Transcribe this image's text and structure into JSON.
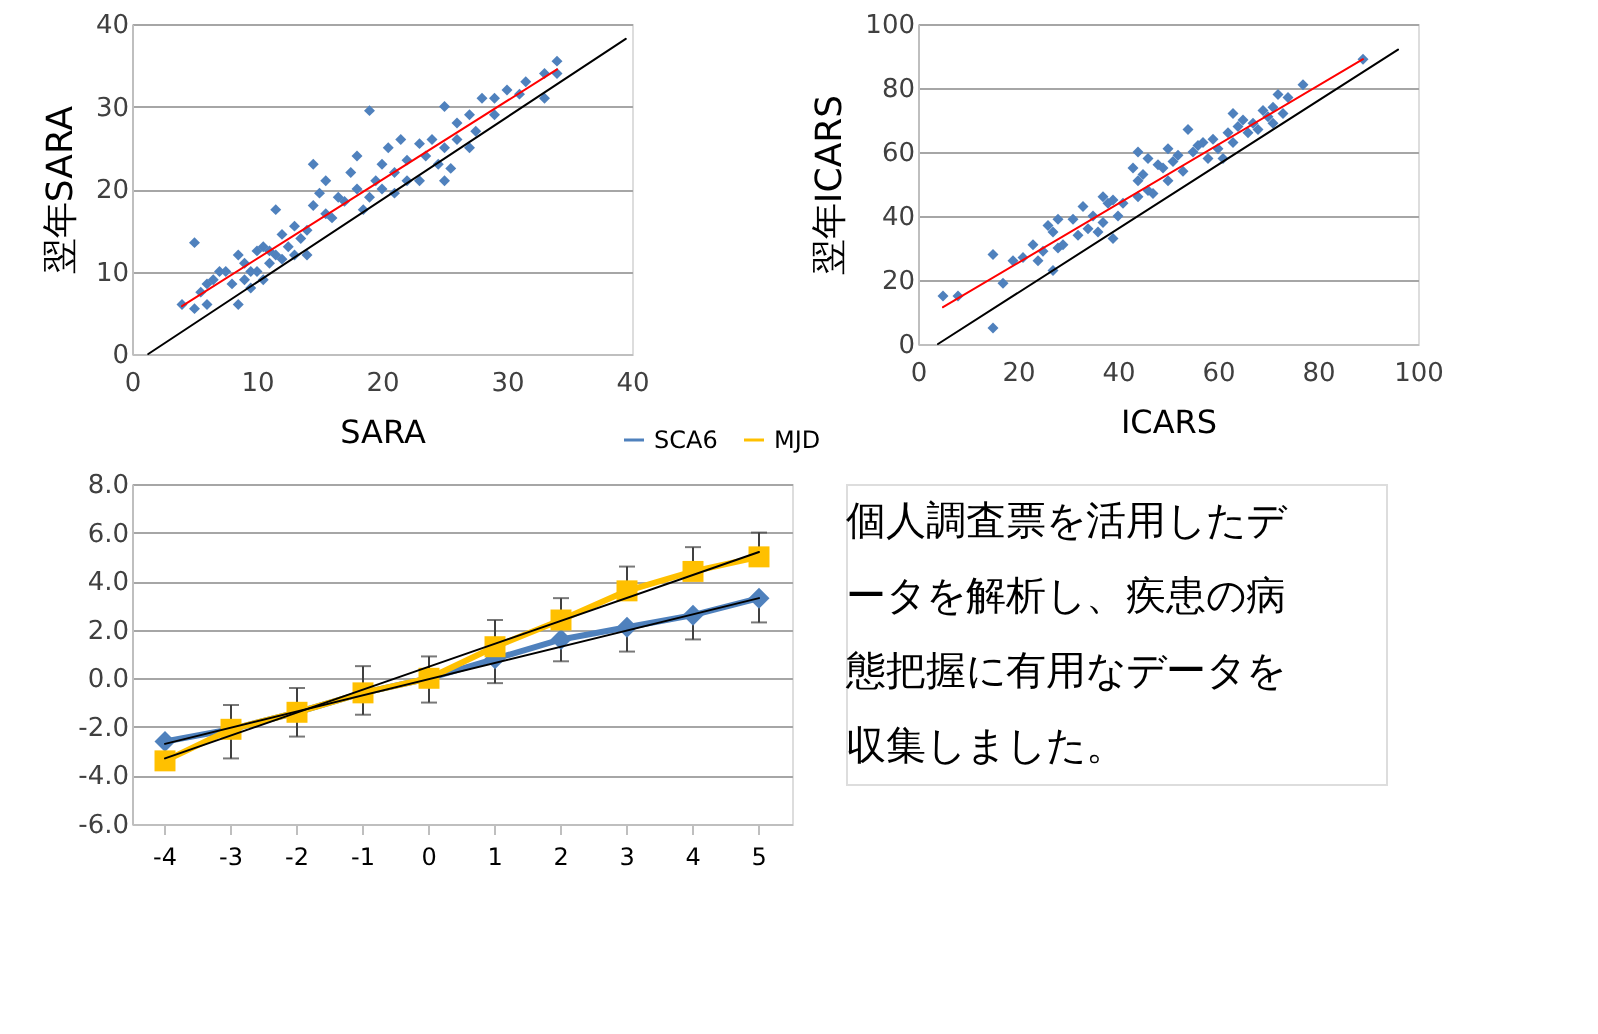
{
  "chart_data": [
    {
      "type": "scatter",
      "xlabel": "SARA",
      "ylabel": "翌年SARA",
      "xlim": [
        0,
        40
      ],
      "ylim": [
        0,
        40
      ],
      "xticks": [
        0,
        10,
        20,
        30,
        40
      ],
      "yticks": [
        0,
        10,
        20,
        30,
        40
      ],
      "grid": "y",
      "marker": "diamond",
      "series": [
        {
          "color": "#4f81bd",
          "x": [
            4,
            5,
            5,
            5.5,
            6,
            6,
            6.5,
            7,
            7.5,
            8,
            8.5,
            8.5,
            9,
            9,
            9.5,
            9.5,
            10,
            10,
            10.5,
            10.5,
            11,
            11,
            11.5,
            11.5,
            12,
            12,
            12.5,
            13,
            13,
            13.5,
            14,
            14,
            14.5,
            14.5,
            15,
            15.5,
            15.5,
            16,
            16.5,
            17,
            17.5,
            18,
            18,
            18.5,
            19,
            19,
            19.5,
            20,
            20,
            20.5,
            21,
            21,
            21.5,
            22,
            22,
            23,
            23,
            23.5,
            24,
            24.5,
            25,
            25,
            25,
            25.5,
            26,
            26,
            27,
            27,
            27.5,
            28,
            29,
            29,
            30,
            31,
            31.5,
            33,
            33,
            34,
            34
          ],
          "values": [
            6,
            5.5,
            13.5,
            7.5,
            6,
            8.5,
            9,
            10,
            10,
            8.5,
            6,
            12,
            9,
            11,
            10,
            8,
            12.5,
            10,
            13,
            9,
            11,
            12.5,
            17.5,
            12,
            14.5,
            11.5,
            13,
            15.5,
            12,
            14,
            12,
            15,
            23,
            18,
            19.5,
            21,
            17,
            16.5,
            19,
            18.5,
            22,
            24,
            20,
            17.5,
            29.5,
            19,
            21,
            23,
            20,
            25,
            22,
            19.5,
            26,
            23.5,
            21,
            25.5,
            21,
            24,
            26,
            23,
            30,
            21,
            25,
            22.5,
            28,
            26,
            29,
            25,
            27,
            31,
            29,
            31,
            32,
            31.5,
            33,
            34,
            31,
            35.5,
            34
          ]
        },
        {
          "type": "line",
          "color": "#ff0000",
          "marker": "none",
          "x": [
            4,
            34
          ],
          "values": [
            5.8,
            34.5
          ]
        },
        {
          "type": "line",
          "color": "#000000",
          "marker": "none",
          "x": [
            1.3,
            39.5
          ],
          "values": [
            0,
            38.2
          ]
        }
      ]
    },
    {
      "type": "scatter",
      "xlabel": "ICARS",
      "ylabel": "翌年ICARS",
      "xlim": [
        0,
        100
      ],
      "ylim": [
        0,
        100
      ],
      "xticks": [
        0,
        20,
        40,
        60,
        80,
        100
      ],
      "yticks": [
        0,
        20,
        40,
        60,
        80,
        100
      ],
      "grid": "y",
      "marker": "diamond",
      "series": [
        {
          "color": "#4f81bd",
          "x": [
            5,
            8,
            15,
            15,
            17,
            19,
            21,
            23,
            24,
            25,
            26,
            27,
            27,
            28,
            28,
            29,
            31,
            32,
            33,
            34,
            35,
            36,
            37,
            37,
            38,
            39,
            39,
            40,
            41,
            43,
            44,
            44,
            44,
            45,
            46,
            46,
            47,
            48,
            49,
            50,
            50,
            51,
            52,
            53,
            54,
            55,
            56,
            57,
            58,
            59,
            60,
            61,
            62,
            63,
            63,
            64,
            65,
            66,
            67,
            68,
            69,
            70,
            71,
            71,
            72,
            73,
            74,
            77,
            89
          ],
          "values": [
            15,
            15,
            28,
            5,
            19,
            26,
            27,
            31,
            26,
            29,
            37,
            23,
            35,
            39,
            30,
            31,
            39,
            34,
            43,
            36,
            40,
            35,
            46,
            38,
            44,
            33,
            45,
            40,
            44,
            55,
            60,
            51,
            46,
            53,
            58,
            48,
            47,
            56,
            55,
            61,
            51,
            57,
            59,
            54,
            67,
            60,
            62,
            63,
            58,
            64,
            61,
            58,
            66,
            72,
            63,
            68,
            70,
            66,
            69,
            67,
            73,
            71,
            74,
            69,
            78,
            72,
            77,
            81,
            89
          ]
        },
        {
          "type": "line",
          "color": "#ff0000",
          "marker": "none",
          "x": [
            5,
            89
          ],
          "values": [
            11.5,
            89
          ]
        },
        {
          "type": "line",
          "color": "#000000",
          "marker": "none",
          "x": [
            4,
            96
          ],
          "values": [
            0,
            92
          ]
        }
      ]
    },
    {
      "type": "line",
      "categories": [
        "-4",
        "-3",
        "-2",
        "-1",
        "0",
        "1",
        "2",
        "3",
        "4",
        "5"
      ],
      "ylim": [
        -6,
        8
      ],
      "yticks": [
        {
          "value": -6,
          "label": "-6.0"
        },
        {
          "value": -4,
          "label": "-4.0"
        },
        {
          "value": -2,
          "label": "-2.0"
        },
        {
          "value": 0,
          "label": "0.0"
        },
        {
          "value": 2,
          "label": "2.0"
        },
        {
          "value": 4,
          "label": "4.0"
        },
        {
          "value": 6,
          "label": "6.0"
        },
        {
          "value": 8,
          "label": "8.0"
        }
      ],
      "grid": "y",
      "legend": "top right",
      "series": [
        {
          "name": "SCA6",
          "color": "#4f81bd",
          "marker": "diamond",
          "values": [
            -2.6,
            -2.1,
            -1.4,
            -0.6,
            0,
            0.8,
            1.6,
            2.1,
            2.6,
            3.3
          ],
          "errors": [
            null,
            [
              -3.3,
              -2.1
            ],
            [
              -2.4,
              -1.4
            ],
            [
              -1.5,
              -0.6
            ],
            [
              -1,
              0
            ],
            [
              -0.2,
              0.8
            ],
            [
              0.7,
              1.6
            ],
            [
              1.1,
              2.1
            ],
            [
              1.6,
              2.6
            ],
            [
              2.3,
              3.3
            ]
          ]
        },
        {
          "name": "MJD",
          "color": "#ffc000",
          "marker": "square",
          "values": [
            -3.4,
            -2.1,
            -1.4,
            -0.6,
            0,
            1.3,
            2.4,
            3.6,
            4.4,
            5.0
          ],
          "errors": [
            null,
            [
              -2.1,
              -1.1
            ],
            [
              -1.4,
              -0.4
            ],
            [
              -0.6,
              0.5
            ],
            [
              0,
              0.9
            ],
            [
              1.3,
              2.4
            ],
            [
              2.4,
              3.3
            ],
            [
              3.6,
              4.6
            ],
            [
              4.4,
              5.4
            ],
            [
              5.0,
              6.0
            ]
          ]
        },
        {
          "type": "line",
          "color": "#000000",
          "marker": "none",
          "x": [
            "-4",
            "5"
          ],
          "values": [
            -2.7,
            3.3
          ]
        },
        {
          "type": "line",
          "color": "#000000",
          "marker": "none",
          "x": [
            "-4",
            "5"
          ],
          "values": [
            -3.3,
            5.2
          ]
        }
      ]
    },
    {
      "type": "other",
      "annotations": [
        "個人調査票を活用したデータを解析し、疾患の病態把握に有用なデータを収集しました。"
      ]
    }
  ]
}
